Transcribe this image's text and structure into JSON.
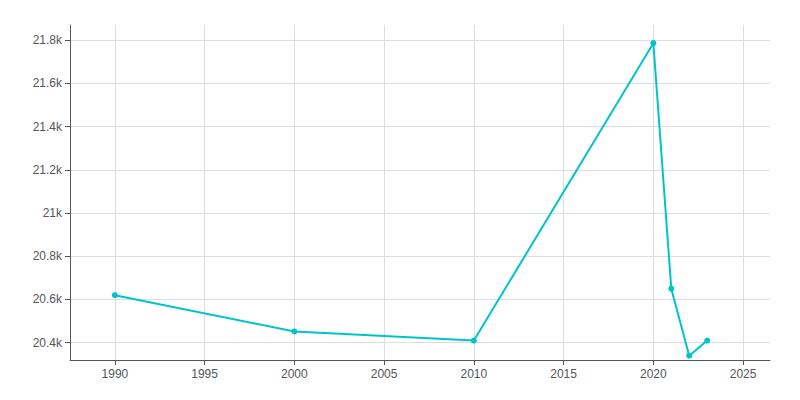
{
  "chart_data": {
    "type": "line",
    "x": [
      1990,
      2000,
      2010,
      2020,
      2021,
      2022,
      2023
    ],
    "values": [
      20620,
      20452,
      20410,
      21786,
      20650,
      20340,
      20410
    ],
    "color": "#00C5C8",
    "marker": "circle",
    "xlim": [
      1987.5,
      2026.5
    ],
    "xticks": [
      1990,
      1995,
      2000,
      2005,
      2010,
      2015,
      2020,
      2025
    ],
    "ylim": [
      20320,
      21870
    ],
    "yticks": [
      {
        "value": 20400,
        "label": "20.4k"
      },
      {
        "value": 20600,
        "label": "20.6k"
      },
      {
        "value": 20800,
        "label": "20.8k"
      },
      {
        "value": 21000,
        "label": "21k"
      },
      {
        "value": 21200,
        "label": "21.2k"
      },
      {
        "value": 21400,
        "label": "21.4k"
      },
      {
        "value": 21600,
        "label": "21.6k"
      },
      {
        "value": 21800,
        "label": "21.8k"
      }
    ],
    "grid": true
  }
}
